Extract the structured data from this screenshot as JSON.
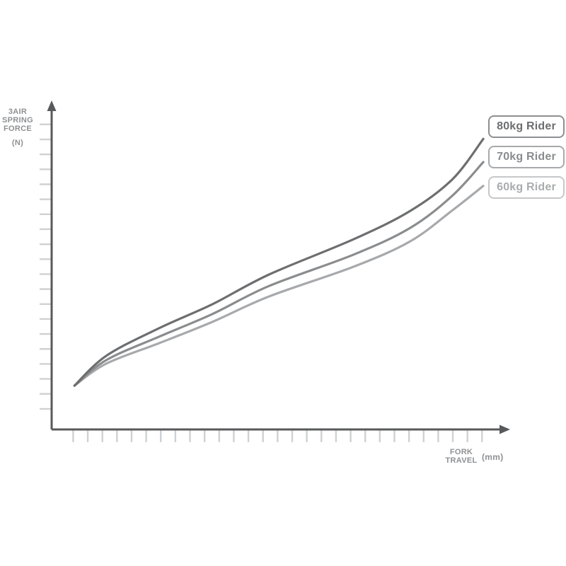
{
  "page": {
    "background": "#ffffff"
  },
  "labels": {
    "y_axis": {
      "lines": [
        "3AIR",
        "SPRING",
        "FORCE"
      ],
      "unit": "(N)"
    },
    "x_axis": {
      "lines": [
        "FORK",
        "TRAVEL"
      ],
      "unit": "(mm)"
    }
  },
  "legend": {
    "items": [
      {
        "label": "80kg Rider",
        "text_color": "#6d6e70",
        "border_color": "#8d8f92"
      },
      {
        "label": "70kg Rider",
        "text_color": "#8a8c8e",
        "border_color": "#a7a9ac"
      },
      {
        "label": "60kg Rider",
        "text_color": "#aaacae",
        "border_color": "#c6c7c9"
      }
    ]
  },
  "chart_data": {
    "type": "line",
    "title": "",
    "xlabel": "FORK TRAVEL (mm)",
    "ylabel": "3AIR SPRING FORCE (N)",
    "grid": false,
    "legend_position": "right",
    "axes_note": "Axes have unlabeled tick marks only; no numeric scale shown. Points are normalized 0-1 within the plot area (x = fraction of travel axis, y = fraction of force axis).",
    "x_axis": {
      "numeric_labels": false,
      "tick_count": 29,
      "first_tick": 0.047,
      "tick_spacing": 0.0319
    },
    "y_axis": {
      "numeric_labels": false,
      "tick_count": 20,
      "first_tick": 0.063,
      "tick_spacing": 0.0458
    },
    "colors": {
      "axis": "#58595b",
      "tick": "#cfd1d3",
      "label_text": "#8e9093"
    },
    "series": [
      {
        "name": "80kg Rider",
        "color": "#6d6e70",
        "points": [
          [
            0.05,
            0.134
          ],
          [
            0.119,
            0.225
          ],
          [
            0.235,
            0.31
          ],
          [
            0.351,
            0.383
          ],
          [
            0.475,
            0.474
          ],
          [
            0.66,
            0.582
          ],
          [
            0.784,
            0.669
          ],
          [
            0.876,
            0.766
          ],
          [
            0.943,
            0.889
          ]
        ]
      },
      {
        "name": "70kg Rider",
        "color": "#8a8c8e",
        "points": [
          [
            0.05,
            0.134
          ],
          [
            0.119,
            0.212
          ],
          [
            0.235,
            0.284
          ],
          [
            0.351,
            0.353
          ],
          [
            0.475,
            0.439
          ],
          [
            0.66,
            0.535
          ],
          [
            0.784,
            0.617
          ],
          [
            0.876,
            0.716
          ],
          [
            0.943,
            0.818
          ]
        ]
      },
      {
        "name": "60kg Rider",
        "color": "#a7a9ac",
        "points": [
          [
            0.05,
            0.134
          ],
          [
            0.119,
            0.201
          ],
          [
            0.235,
            0.264
          ],
          [
            0.351,
            0.329
          ],
          [
            0.475,
            0.407
          ],
          [
            0.66,
            0.498
          ],
          [
            0.784,
            0.576
          ],
          [
            0.876,
            0.671
          ],
          [
            0.943,
            0.745
          ]
        ]
      }
    ]
  }
}
